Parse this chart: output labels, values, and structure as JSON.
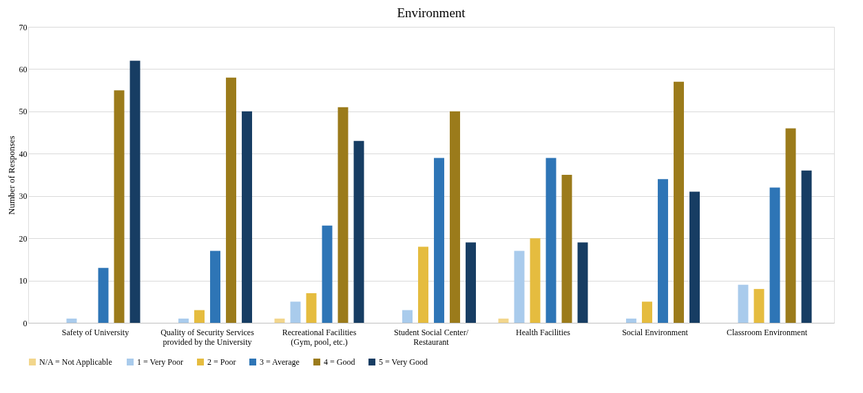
{
  "chart_data": {
    "type": "bar",
    "title": "Environment",
    "ylabel": "Number of Responses",
    "categories": [
      "Safety of University",
      "Quality of Security Services provided by the University",
      "Recreational Facilities (Gym, pool, etc.)",
      "Student Social Center/ Restaurant",
      "Health Facilities",
      "Social Environment",
      "Classroom Environment"
    ],
    "series": [
      {
        "name": "N/A = Not Applicable",
        "color": "#f2d68c",
        "values": [
          0,
          0,
          1,
          0,
          1,
          0,
          0
        ]
      },
      {
        "name": "1 = Very Poor",
        "color": "#a9cbec",
        "values": [
          1,
          1,
          5,
          3,
          17,
          1,
          9
        ]
      },
      {
        "name": "2 = Poor",
        "color": "#e5bc3f",
        "values": [
          0,
          3,
          7,
          18,
          20,
          5,
          8
        ]
      },
      {
        "name": "3 = Average",
        "color": "#2e75b6",
        "values": [
          13,
          17,
          23,
          39,
          39,
          34,
          32
        ]
      },
      {
        "name": "4 = Good",
        "color": "#9b7b1b",
        "values": [
          55,
          58,
          51,
          50,
          35,
          57,
          46
        ]
      },
      {
        "name": "5 = Very Good",
        "color": "#173d63",
        "values": [
          62,
          50,
          43,
          19,
          19,
          31,
          36
        ]
      }
    ],
    "ylim": [
      0,
      70
    ],
    "yticks": [
      0,
      10,
      20,
      30,
      40,
      50,
      60,
      70
    ],
    "grid": "y",
    "legend": "bottom"
  }
}
